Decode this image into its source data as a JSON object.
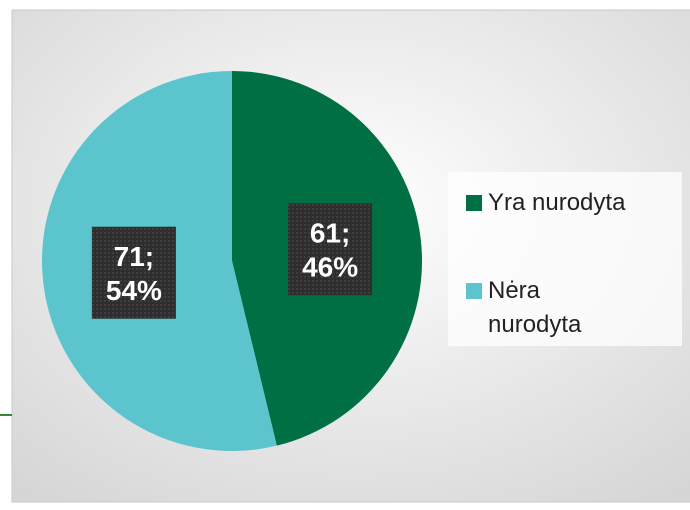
{
  "chart_data": {
    "type": "pie",
    "categories": [
      "Yra nurodyta",
      "Nėra nurodyta"
    ],
    "values": [
      61,
      71
    ],
    "value_labels": [
      [
        "61;",
        "46%"
      ],
      [
        "71;",
        "54%"
      ]
    ],
    "colors": [
      "#007044",
      "#5bc4cc"
    ],
    "legend": "right"
  }
}
